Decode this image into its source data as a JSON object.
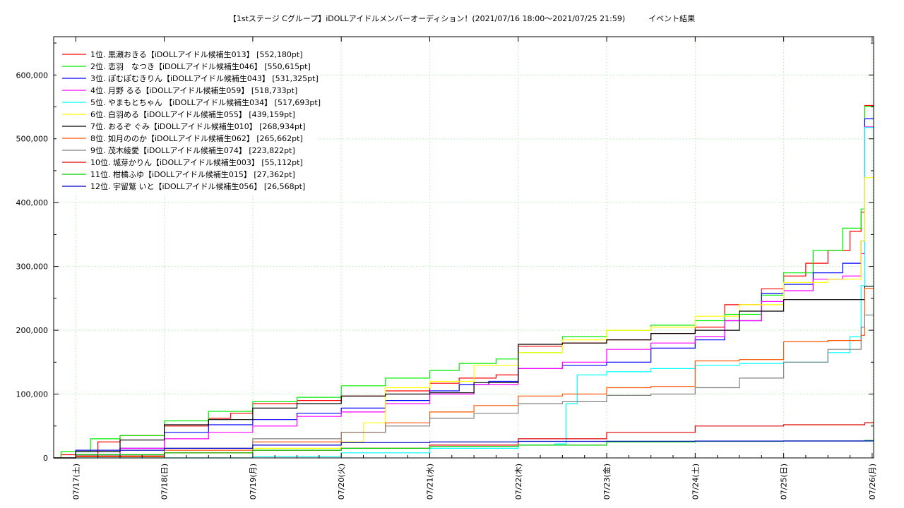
{
  "chart_data": {
    "type": "line",
    "title": "【1stステージ Cグループ】iDOLLアイドルメンバーオーディション！(2021/07/16 18:00〜2021/07/25 21:59)　　　イベント結果",
    "xlabel": "",
    "ylabel": "",
    "x_range": [
      "2021-07-16T18:00",
      "2021-07-26T00:24"
    ],
    "x_ticks": [
      "07/17(土)",
      "07/18(日)",
      "07/19(月)",
      "07/20(火)",
      "07/21(水)",
      "07/22(木)",
      "07/23(金)",
      "07/24(土)",
      "07/25(日)",
      "07/26(月)"
    ],
    "ylim": [
      0,
      660000
    ],
    "y_ticks": [
      "0",
      "100,000",
      "200,000",
      "300,000",
      "400,000",
      "500,000",
      "600,000"
    ],
    "y_tick_values": [
      0,
      100000,
      200000,
      300000,
      400000,
      500000,
      600000
    ],
    "grid": true,
    "legend_position": "top-left",
    "series": [
      {
        "name": "1位. 黒瀬おきる【iDOLLアイドル候補生013】 [552,180pt]",
        "color": "#ff0000",
        "x": [
          "2021-07-16T18:00",
          "2021-07-16T20:00",
          "2021-07-17T06:00",
          "2021-07-17T12:00",
          "2021-07-18T00:00",
          "2021-07-18T12:00",
          "2021-07-18T18:00",
          "2021-07-19T00:00",
          "2021-07-19T12:00",
          "2021-07-20T00:00",
          "2021-07-20T12:00",
          "2021-07-21T00:00",
          "2021-07-21T08:00",
          "2021-07-21T18:00",
          "2021-07-22T00:00",
          "2021-07-22T12:00",
          "2021-07-23T00:00",
          "2021-07-23T12:00",
          "2021-07-24T00:00",
          "2021-07-24T08:00",
          "2021-07-24T18:00",
          "2021-07-25T00:00",
          "2021-07-25T06:00",
          "2021-07-25T12:00",
          "2021-07-25T18:00",
          "2021-07-25T21:00",
          "2021-07-25T21:59",
          "2021-07-26T00:24"
        ],
        "y": [
          0,
          5000,
          25000,
          35000,
          50000,
          62000,
          70000,
          85000,
          90000,
          97000,
          105000,
          117000,
          125000,
          130000,
          175000,
          180000,
          185000,
          195000,
          205000,
          240000,
          265000,
          285000,
          305000,
          325000,
          355000,
          385000,
          552180,
          552180
        ]
      },
      {
        "name": "2位. 恋羽　なつき【iDOLLアイドル候補生046】 [550,615pt]",
        "color": "#00ee00",
        "x": [
          "2021-07-16T18:00",
          "2021-07-16T20:00",
          "2021-07-17T04:00",
          "2021-07-17T12:00",
          "2021-07-18T00:00",
          "2021-07-18T12:00",
          "2021-07-19T00:00",
          "2021-07-19T12:00",
          "2021-07-20T00:00",
          "2021-07-20T12:00",
          "2021-07-21T00:00",
          "2021-07-21T08:00",
          "2021-07-21T18:00",
          "2021-07-22T00:00",
          "2021-07-22T12:00",
          "2021-07-23T00:00",
          "2021-07-23T12:00",
          "2021-07-24T00:00",
          "2021-07-24T08:00",
          "2021-07-24T18:00",
          "2021-07-25T00:00",
          "2021-07-25T08:00",
          "2021-07-25T16:00",
          "2021-07-25T21:00",
          "2021-07-25T21:59",
          "2021-07-26T00:24"
        ],
        "y": [
          0,
          10000,
          30000,
          35000,
          58000,
          73000,
          88000,
          95000,
          113000,
          125000,
          137000,
          148000,
          155000,
          165000,
          190000,
          200000,
          208000,
          215000,
          225000,
          255000,
          290000,
          325000,
          360000,
          390000,
          550615,
          550615
        ]
      },
      {
        "name": "3位. ぽむぽむきりん【iDOLLアイドル候補生043】 [531,325pt]",
        "color": "#0000ff",
        "x": [
          "2021-07-16T18:00",
          "2021-07-17T00:00",
          "2021-07-17T12:00",
          "2021-07-18T00:00",
          "2021-07-18T12:00",
          "2021-07-19T00:00",
          "2021-07-19T12:00",
          "2021-07-20T00:00",
          "2021-07-20T12:00",
          "2021-07-21T00:00",
          "2021-07-21T08:00",
          "2021-07-21T16:00",
          "2021-07-22T00:00",
          "2021-07-22T12:00",
          "2021-07-23T00:00",
          "2021-07-23T12:00",
          "2021-07-24T00:00",
          "2021-07-24T08:00",
          "2021-07-24T18:00",
          "2021-07-25T00:00",
          "2021-07-25T08:00",
          "2021-07-25T16:00",
          "2021-07-25T21:00",
          "2021-07-25T21:59",
          "2021-07-26T00:24"
        ],
        "y": [
          0,
          5000,
          15000,
          40000,
          52000,
          60000,
          70000,
          78000,
          90000,
          105000,
          115000,
          120000,
          140000,
          145000,
          150000,
          172000,
          185000,
          215000,
          258000,
          272000,
          290000,
          305000,
          340000,
          531325,
          531325
        ]
      },
      {
        "name": "4位. 月野 るる【iDOLLアイドル候補生059】 [518,733pt]",
        "color": "#ff00ff",
        "x": [
          "2021-07-16T18:00",
          "2021-07-17T00:00",
          "2021-07-17T12:00",
          "2021-07-18T00:00",
          "2021-07-18T12:00",
          "2021-07-19T00:00",
          "2021-07-19T12:00",
          "2021-07-20T00:00",
          "2021-07-20T12:00",
          "2021-07-21T00:00",
          "2021-07-21T12:00",
          "2021-07-22T00:00",
          "2021-07-22T12:00",
          "2021-07-23T00:00",
          "2021-07-23T12:00",
          "2021-07-24T00:00",
          "2021-07-24T08:00",
          "2021-07-24T18:00",
          "2021-07-25T00:00",
          "2021-07-25T08:00",
          "2021-07-25T16:00",
          "2021-07-25T21:00",
          "2021-07-25T21:59",
          "2021-07-26T00:24"
        ],
        "y": [
          0,
          2000,
          15000,
          30000,
          40000,
          50000,
          65000,
          72000,
          85000,
          100000,
          115000,
          140000,
          150000,
          170000,
          180000,
          190000,
          215000,
          245000,
          262000,
          280000,
          285000,
          320000,
          518733,
          518733
        ]
      },
      {
        "name": "5位. やまもとちゃん 【iDOLLアイドル候補生034】 [517,693pt]",
        "color": "#00ffff",
        "x": [
          "2021-07-16T18:00",
          "2021-07-18T00:00",
          "2021-07-19T00:00",
          "2021-07-20T00:00",
          "2021-07-21T00:00",
          "2021-07-22T00:00",
          "2021-07-22T10:00",
          "2021-07-22T13:00",
          "2021-07-22T16:00",
          "2021-07-23T00:00",
          "2021-07-23T12:00",
          "2021-07-24T00:00",
          "2021-07-24T12:00",
          "2021-07-25T00:00",
          "2021-07-25T12:00",
          "2021-07-25T18:00",
          "2021-07-25T21:00",
          "2021-07-25T21:59",
          "2021-07-26T00:24"
        ],
        "y": [
          0,
          0,
          2000,
          8000,
          15000,
          20000,
          22000,
          85000,
          130000,
          135000,
          140000,
          145000,
          148000,
          150000,
          165000,
          190000,
          270000,
          517693,
          517693
        ]
      },
      {
        "name": "6位. 白羽める【iDOLLアイドル候補生055】 [439,159pt]",
        "color": "#ffff00",
        "x": [
          "2021-07-16T18:00",
          "2021-07-17T00:00",
          "2021-07-18T00:00",
          "2021-07-19T00:00",
          "2021-07-20T00:00",
          "2021-07-20T06:00",
          "2021-07-20T12:00",
          "2021-07-21T00:00",
          "2021-07-21T12:00",
          "2021-07-22T00:00",
          "2021-07-22T12:00",
          "2021-07-23T00:00",
          "2021-07-23T12:00",
          "2021-07-24T00:00",
          "2021-07-24T12:00",
          "2021-07-25T00:00",
          "2021-07-25T12:00",
          "2021-07-25T21:00",
          "2021-07-25T21:59",
          "2021-07-26T00:24"
        ],
        "y": [
          0,
          2000,
          8000,
          15000,
          25000,
          55000,
          110000,
          120000,
          145000,
          165000,
          185000,
          200000,
          205000,
          222000,
          240000,
          275000,
          280000,
          340000,
          439159,
          439159
        ]
      },
      {
        "name": "7位. おるぞ ぐみ【iDOLLアイドル候補生010】 [268,934pt]",
        "color": "#000000",
        "x": [
          "2021-07-16T18:00",
          "2021-07-17T00:00",
          "2021-07-17T12:00",
          "2021-07-18T00:00",
          "2021-07-18T12:00",
          "2021-07-19T00:00",
          "2021-07-19T12:00",
          "2021-07-20T00:00",
          "2021-07-20T12:00",
          "2021-07-21T00:00",
          "2021-07-21T12:00",
          "2021-07-22T00:00",
          "2021-07-22T12:00",
          "2021-07-23T00:00",
          "2021-07-23T12:00",
          "2021-07-24T00:00",
          "2021-07-24T12:00",
          "2021-07-25T00:00",
          "2021-07-25T12:00",
          "2021-07-25T21:00",
          "2021-07-25T21:59",
          "2021-07-26T00:24"
        ],
        "y": [
          0,
          10000,
          28000,
          52000,
          60000,
          78000,
          85000,
          97000,
          100000,
          102000,
          118000,
          178000,
          180000,
          185000,
          195000,
          200000,
          230000,
          248000,
          248000,
          248000,
          268934,
          268934
        ]
      },
      {
        "name": "8位. 如月ののか【iDOLLアイドル候補生062】 [265,662pt]",
        "color": "#ff5500",
        "x": [
          "2021-07-16T18:00",
          "2021-07-17T00:00",
          "2021-07-18T00:00",
          "2021-07-19T00:00",
          "2021-07-20T00:00",
          "2021-07-20T12:00",
          "2021-07-21T00:00",
          "2021-07-21T12:00",
          "2021-07-22T00:00",
          "2021-07-22T12:00",
          "2021-07-23T00:00",
          "2021-07-23T12:00",
          "2021-07-24T00:00",
          "2021-07-24T12:00",
          "2021-07-25T00:00",
          "2021-07-25T12:00",
          "2021-07-25T21:00",
          "2021-07-25T21:59",
          "2021-07-26T00:24"
        ],
        "y": [
          0,
          2000,
          12000,
          25000,
          40000,
          55000,
          72000,
          82000,
          97000,
          100000,
          110000,
          112000,
          152000,
          154000,
          182000,
          184000,
          192000,
          265662,
          265662
        ]
      },
      {
        "name": "9位. 茂木綾愛【iDOLLアイドル候補生074】 [223,822pt]",
        "color": "#808080",
        "x": [
          "2021-07-16T18:00",
          "2021-07-17T00:00",
          "2021-07-18T00:00",
          "2021-07-19T00:00",
          "2021-07-20T00:00",
          "2021-07-20T12:00",
          "2021-07-21T00:00",
          "2021-07-21T12:00",
          "2021-07-22T00:00",
          "2021-07-22T12:00",
          "2021-07-23T00:00",
          "2021-07-23T12:00",
          "2021-07-24T00:00",
          "2021-07-24T12:00",
          "2021-07-25T00:00",
          "2021-07-25T12:00",
          "2021-07-25T21:00",
          "2021-07-25T21:59",
          "2021-07-26T00:24"
        ],
        "y": [
          0,
          5000,
          15000,
          30000,
          40000,
          50000,
          62000,
          70000,
          85000,
          88000,
          98000,
          100000,
          110000,
          125000,
          150000,
          170000,
          205000,
          223822,
          223822
        ]
      },
      {
        "name": "10位. 城芽かりん【iDOLLアイドル候補生003】 [55,112pt]",
        "color": "#e00000",
        "x": [
          "2021-07-16T18:00",
          "2021-07-17T00:00",
          "2021-07-18T00:00",
          "2021-07-19T00:00",
          "2021-07-20T00:00",
          "2021-07-21T00:00",
          "2021-07-22T00:00",
          "2021-07-23T00:00",
          "2021-07-24T00:00",
          "2021-07-25T00:00",
          "2021-07-25T21:59",
          "2021-07-26T00:24"
        ],
        "y": [
          0,
          3000,
          8000,
          12000,
          15000,
          20000,
          30000,
          40000,
          50000,
          52000,
          55112,
          55112
        ]
      },
      {
        "name": "11位. 柑橘ふゆ【iDOLLアイドル候補生015】 [27,362pt]",
        "color": "#00cc00",
        "x": [
          "2021-07-16T18:00",
          "2021-07-17T00:00",
          "2021-07-18T00:00",
          "2021-07-19T00:00",
          "2021-07-20T00:00",
          "2021-07-21T00:00",
          "2021-07-22T00:00",
          "2021-07-23T00:00",
          "2021-07-24T00:00",
          "2021-07-25T00:00",
          "2021-07-25T21:59",
          "2021-07-26T00:24"
        ],
        "y": [
          0,
          5000,
          8000,
          12000,
          15000,
          18000,
          20000,
          25000,
          26000,
          26500,
          27362,
          27362
        ]
      },
      {
        "name": "12位. 宇留鷲 いと【iDOLLアイドル候補生056】 [26,568pt]",
        "color": "#0000cc",
        "x": [
          "2021-07-16T18:00",
          "2021-07-17T00:00",
          "2021-07-18T00:00",
          "2021-07-19T00:00",
          "2021-07-20T00:00",
          "2021-07-21T00:00",
          "2021-07-22T00:00",
          "2021-07-23T00:00",
          "2021-07-24T00:00",
          "2021-07-25T00:00",
          "2021-07-25T21:59",
          "2021-07-26T00:24"
        ],
        "y": [
          0,
          12000,
          15000,
          20000,
          24000,
          25000,
          26000,
          26200,
          26400,
          26500,
          26568,
          26568
        ]
      }
    ]
  }
}
